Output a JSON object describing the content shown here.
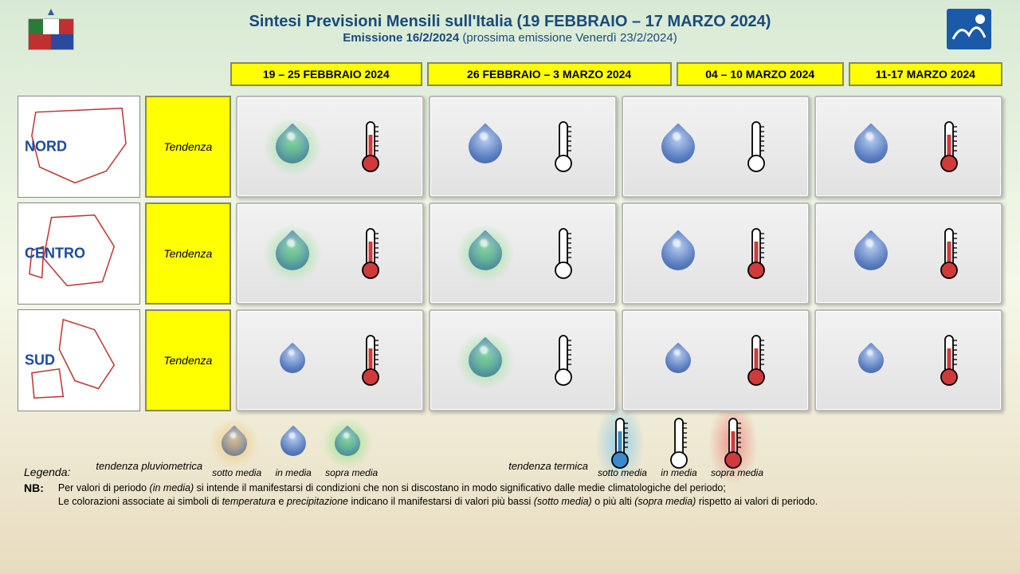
{
  "title": "Sintesi  Previsioni Mensili sull'Italia (19 FEBBRAIO – 17 MARZO 2024)",
  "subtitle_bold": "Emissione 16/2/2024",
  "subtitle_light": " (prossima emissione Venerdì 23/2/2024)",
  "columns": [
    "19 – 25 FEBBRAIO 2024",
    "26 FEBBRAIO – 3 MARZO 2024",
    "04 – 10 MARZO 2024",
    "11-17 MARZO 2024"
  ],
  "tendenza_label": "Tendenza",
  "regions": [
    {
      "name": "NORD",
      "cells": [
        {
          "precip_glow": "green",
          "precip_size": "big",
          "temp_glow": "red",
          "temp_fill": "red"
        },
        {
          "precip_glow": "none",
          "precip_size": "big",
          "temp_glow": "none",
          "temp_fill": "none"
        },
        {
          "precip_glow": "none",
          "precip_size": "big",
          "temp_glow": "none",
          "temp_fill": "none"
        },
        {
          "precip_glow": "none",
          "precip_size": "big",
          "temp_glow": "red",
          "temp_fill": "red"
        }
      ]
    },
    {
      "name": "CENTRO",
      "cells": [
        {
          "precip_glow": "green",
          "precip_size": "big",
          "temp_glow": "red",
          "temp_fill": "red"
        },
        {
          "precip_glow": "green",
          "precip_size": "big",
          "temp_glow": "none",
          "temp_fill": "none"
        },
        {
          "precip_glow": "none",
          "precip_size": "big",
          "temp_glow": "red",
          "temp_fill": "red"
        },
        {
          "precip_glow": "none",
          "precip_size": "big",
          "temp_glow": "red",
          "temp_fill": "red"
        }
      ]
    },
    {
      "name": "SUD",
      "cells": [
        {
          "precip_glow": "none",
          "precip_size": "small",
          "temp_glow": "red",
          "temp_fill": "red"
        },
        {
          "precip_glow": "green",
          "precip_size": "big",
          "temp_glow": "none",
          "temp_fill": "none"
        },
        {
          "precip_glow": "none",
          "precip_size": "small",
          "temp_glow": "red",
          "temp_fill": "red"
        },
        {
          "precip_glow": "none",
          "precip_size": "small",
          "temp_glow": "red",
          "temp_fill": "red"
        }
      ]
    }
  ],
  "legend": {
    "title": "Legenda:",
    "pluv_label": "tendenza pluviometrica",
    "term_label": "tendenza termica",
    "sotto": "sotto media",
    "in": "in media",
    "sopra": "sopra media",
    "nb_label": "NB:",
    "nb_line1": "Per valori di periodo (in media) si intende il manifestarsi di condizioni che non si discostano in modo significativo dalle medie climatologiche del periodo;",
    "nb_line2": "Le colorazioni associate ai simboli di temperatura e precipitazione indicano il manifestarsi di valori più bassi (sotto media) o più alti (sopra media) rispetto ai valori di periodo."
  },
  "colors": {
    "title": "#1b4a7a",
    "region_label": "#1b4aa0",
    "yellow": "#ffff00",
    "glow_green": "rgba(80,220,80,0.55)",
    "glow_orange": "rgba(240,180,60,0.55)",
    "glow_red": "rgba(240,90,90,0.6)",
    "glow_blue": "rgba(90,190,240,0.6)",
    "drop_fill": "#5a7dc0",
    "thermo_red": "#d03a3a"
  }
}
